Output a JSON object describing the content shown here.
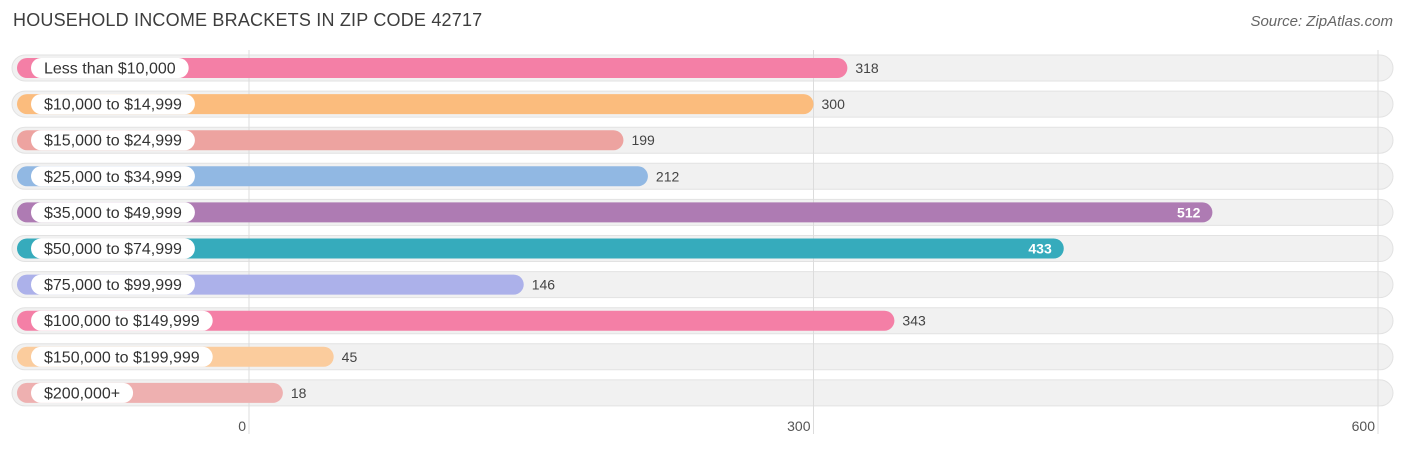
{
  "header": {
    "title": "HOUSEHOLD INCOME BRACKETS IN ZIP CODE 42717",
    "source": "Source: ZipAtlas.com"
  },
  "chart_data": {
    "type": "bar",
    "orientation": "horizontal",
    "title": "HOUSEHOLD INCOME BRACKETS IN ZIP CODE 42717",
    "xlabel": "",
    "ylabel": "",
    "xlim": [
      0,
      600
    ],
    "ticks": [
      0,
      300,
      600
    ],
    "tick_labels": [
      "0",
      "300",
      "600"
    ],
    "grid": true,
    "categories": [
      "Less than $10,000",
      "$10,000 to $14,999",
      "$15,000 to $24,999",
      "$25,000 to $34,999",
      "$35,000 to $49,999",
      "$50,000 to $74,999",
      "$75,000 to $99,999",
      "$100,000 to $149,999",
      "$150,000 to $199,999",
      "$200,000+"
    ],
    "values": [
      318,
      300,
      199,
      212,
      512,
      433,
      146,
      343,
      45,
      18
    ],
    "value_labels": [
      "318",
      "300",
      "199",
      "212",
      "512",
      "433",
      "146",
      "343",
      "45",
      "18"
    ],
    "colors": [
      "#f47fa6",
      "#fbbc7d",
      "#eda3a0",
      "#91b8e3",
      "#ae7bb3",
      "#36abbc",
      "#acb1ea",
      "#f47fa6",
      "#fbcc9d",
      "#eeb0b0"
    ]
  }
}
